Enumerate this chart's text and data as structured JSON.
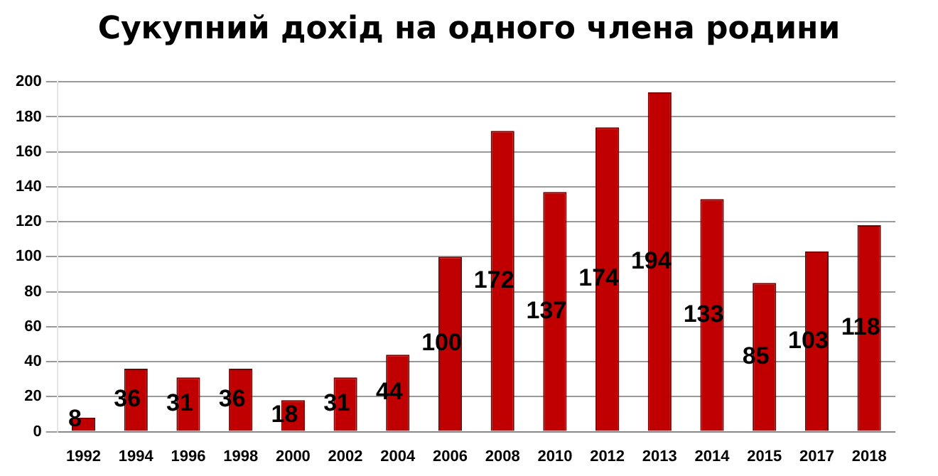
{
  "chart_data": {
    "type": "bar",
    "title": "Сукупний дохід на одного члена родини",
    "categories": [
      "1992",
      "1994",
      "1996",
      "1998",
      "2000",
      "2002",
      "2004",
      "2006",
      "2008",
      "2010",
      "2012",
      "2013",
      "2014",
      "2015",
      "2017",
      "2018"
    ],
    "values": [
      8,
      36,
      31,
      36,
      18,
      31,
      44,
      100,
      172,
      137,
      174,
      194,
      133,
      85,
      103,
      118
    ],
    "color": "#c00000",
    "ylim": [
      0,
      200
    ],
    "yticks": [
      0,
      20,
      40,
      60,
      80,
      100,
      120,
      140,
      160,
      180,
      200
    ],
    "grid": "y",
    "data_labels": true,
    "legend": false
  }
}
